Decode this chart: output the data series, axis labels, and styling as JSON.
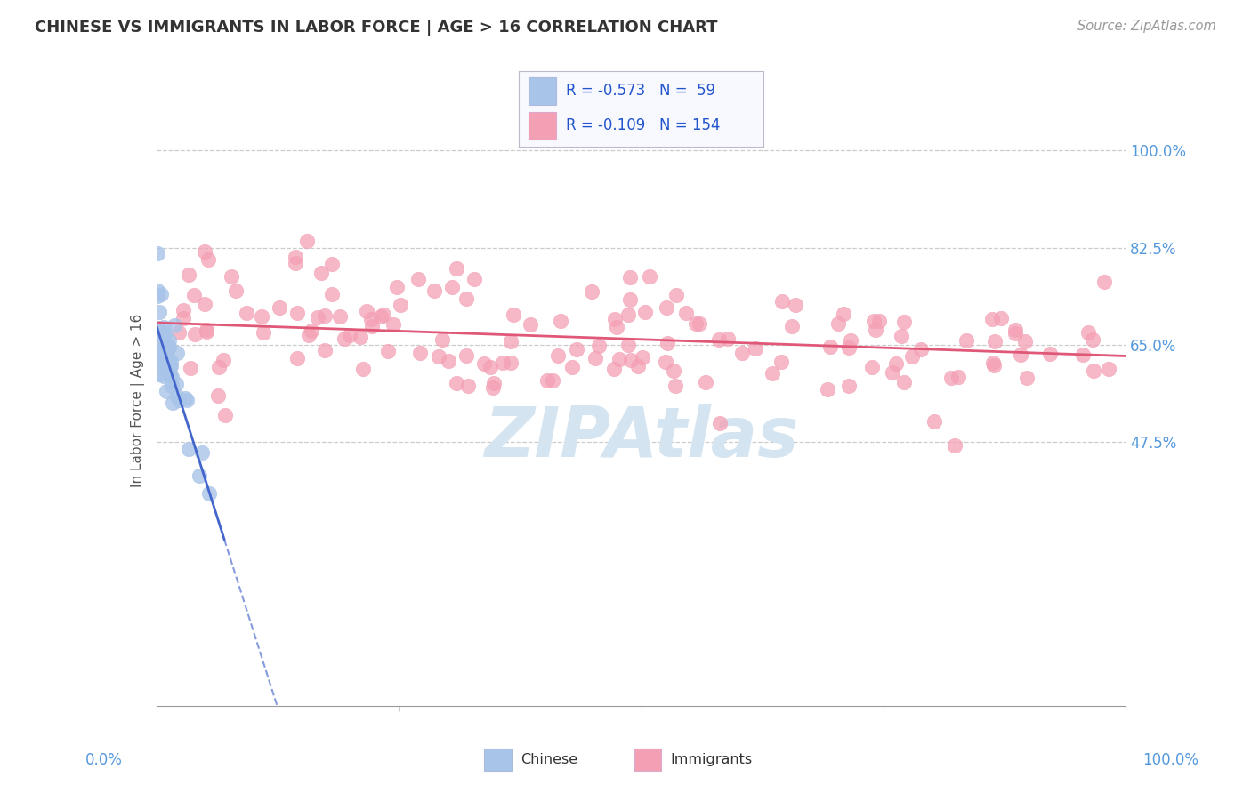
{
  "title": "CHINESE VS IMMIGRANTS IN LABOR FORCE | AGE > 16 CORRELATION CHART",
  "source": "Source: ZipAtlas.com",
  "ylabel": "In Labor Force | Age > 16",
  "ytick_labels": [
    "47.5%",
    "65.0%",
    "82.5%",
    "100.0%"
  ],
  "ytick_values": [
    0.475,
    0.65,
    0.825,
    1.0
  ],
  "blue_R": "-0.573",
  "blue_N": "59",
  "pink_R": "-0.109",
  "pink_N": "154",
  "blue_color": "#a8c4e8",
  "pink_color": "#f4a0b4",
  "blue_line_color": "#4466cc",
  "pink_line_color": "#e05878",
  "watermark_color": "#d4e4f0",
  "background_color": "#ffffff",
  "grid_color": "#cccccc",
  "title_color": "#333333",
  "source_color": "#999999",
  "legend_text_color": "#2255cc",
  "axis_label_color": "#5599dd",
  "ylabel_color": "#555555"
}
